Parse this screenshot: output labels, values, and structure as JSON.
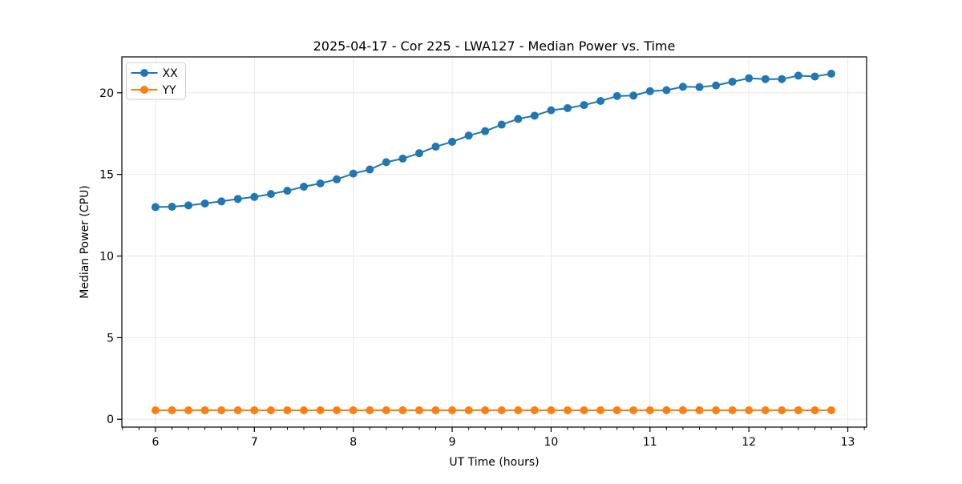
{
  "chart_data": {
    "type": "line",
    "title": "2025-04-17 - Cor 225 - LWA127 - Median Power vs. Time",
    "xlabel": "UT Time (hours)",
    "ylabel": "Median Power (CPU)",
    "xlim": [
      5.66,
      13.19
    ],
    "ylim": [
      -0.48,
      22.2
    ],
    "x_ticks": [
      6,
      7,
      8,
      9,
      10,
      11,
      12,
      13
    ],
    "y_ticks": [
      0,
      5,
      10,
      15,
      20
    ],
    "x_minor_step": 0.166667,
    "grid": true,
    "legend_position": "upper-left",
    "x": [
      6.0,
      6.167,
      6.333,
      6.5,
      6.667,
      6.833,
      7.0,
      7.167,
      7.333,
      7.5,
      7.667,
      7.833,
      8.0,
      8.167,
      8.333,
      8.5,
      8.667,
      8.833,
      9.0,
      9.167,
      9.333,
      9.5,
      9.667,
      9.833,
      10.0,
      10.167,
      10.333,
      10.5,
      10.667,
      10.833,
      11.0,
      11.167,
      11.333,
      11.5,
      11.667,
      11.833,
      12.0,
      12.167,
      12.333,
      12.5,
      12.667,
      12.833
    ],
    "series": [
      {
        "name": "XX",
        "color": "#1f77b4",
        "values": [
          13.0,
          13.02,
          13.1,
          13.22,
          13.35,
          13.5,
          13.62,
          13.8,
          14.0,
          14.25,
          14.45,
          14.7,
          15.05,
          15.3,
          15.75,
          15.97,
          16.3,
          16.7,
          17.0,
          17.38,
          17.65,
          18.05,
          18.4,
          18.6,
          18.93,
          19.06,
          19.25,
          19.5,
          19.8,
          19.83,
          20.1,
          20.16,
          20.37,
          20.35,
          20.45,
          20.68,
          20.89,
          20.84,
          20.84,
          21.05,
          21.0,
          21.17
        ]
      },
      {
        "name": "YY",
        "color": "#ff7f0e",
        "values": [
          0.55,
          0.55,
          0.55,
          0.55,
          0.55,
          0.55,
          0.55,
          0.55,
          0.55,
          0.55,
          0.55,
          0.55,
          0.55,
          0.55,
          0.55,
          0.55,
          0.55,
          0.55,
          0.55,
          0.55,
          0.55,
          0.55,
          0.55,
          0.55,
          0.55,
          0.55,
          0.55,
          0.55,
          0.55,
          0.55,
          0.55,
          0.55,
          0.55,
          0.55,
          0.55,
          0.55,
          0.55,
          0.55,
          0.55,
          0.55,
          0.55,
          0.55
        ]
      }
    ]
  },
  "colors": {
    "grid": "#e8e8e8",
    "spine": "#000000",
    "background": "#ffffff",
    "legend_border": "#cccccc"
  }
}
